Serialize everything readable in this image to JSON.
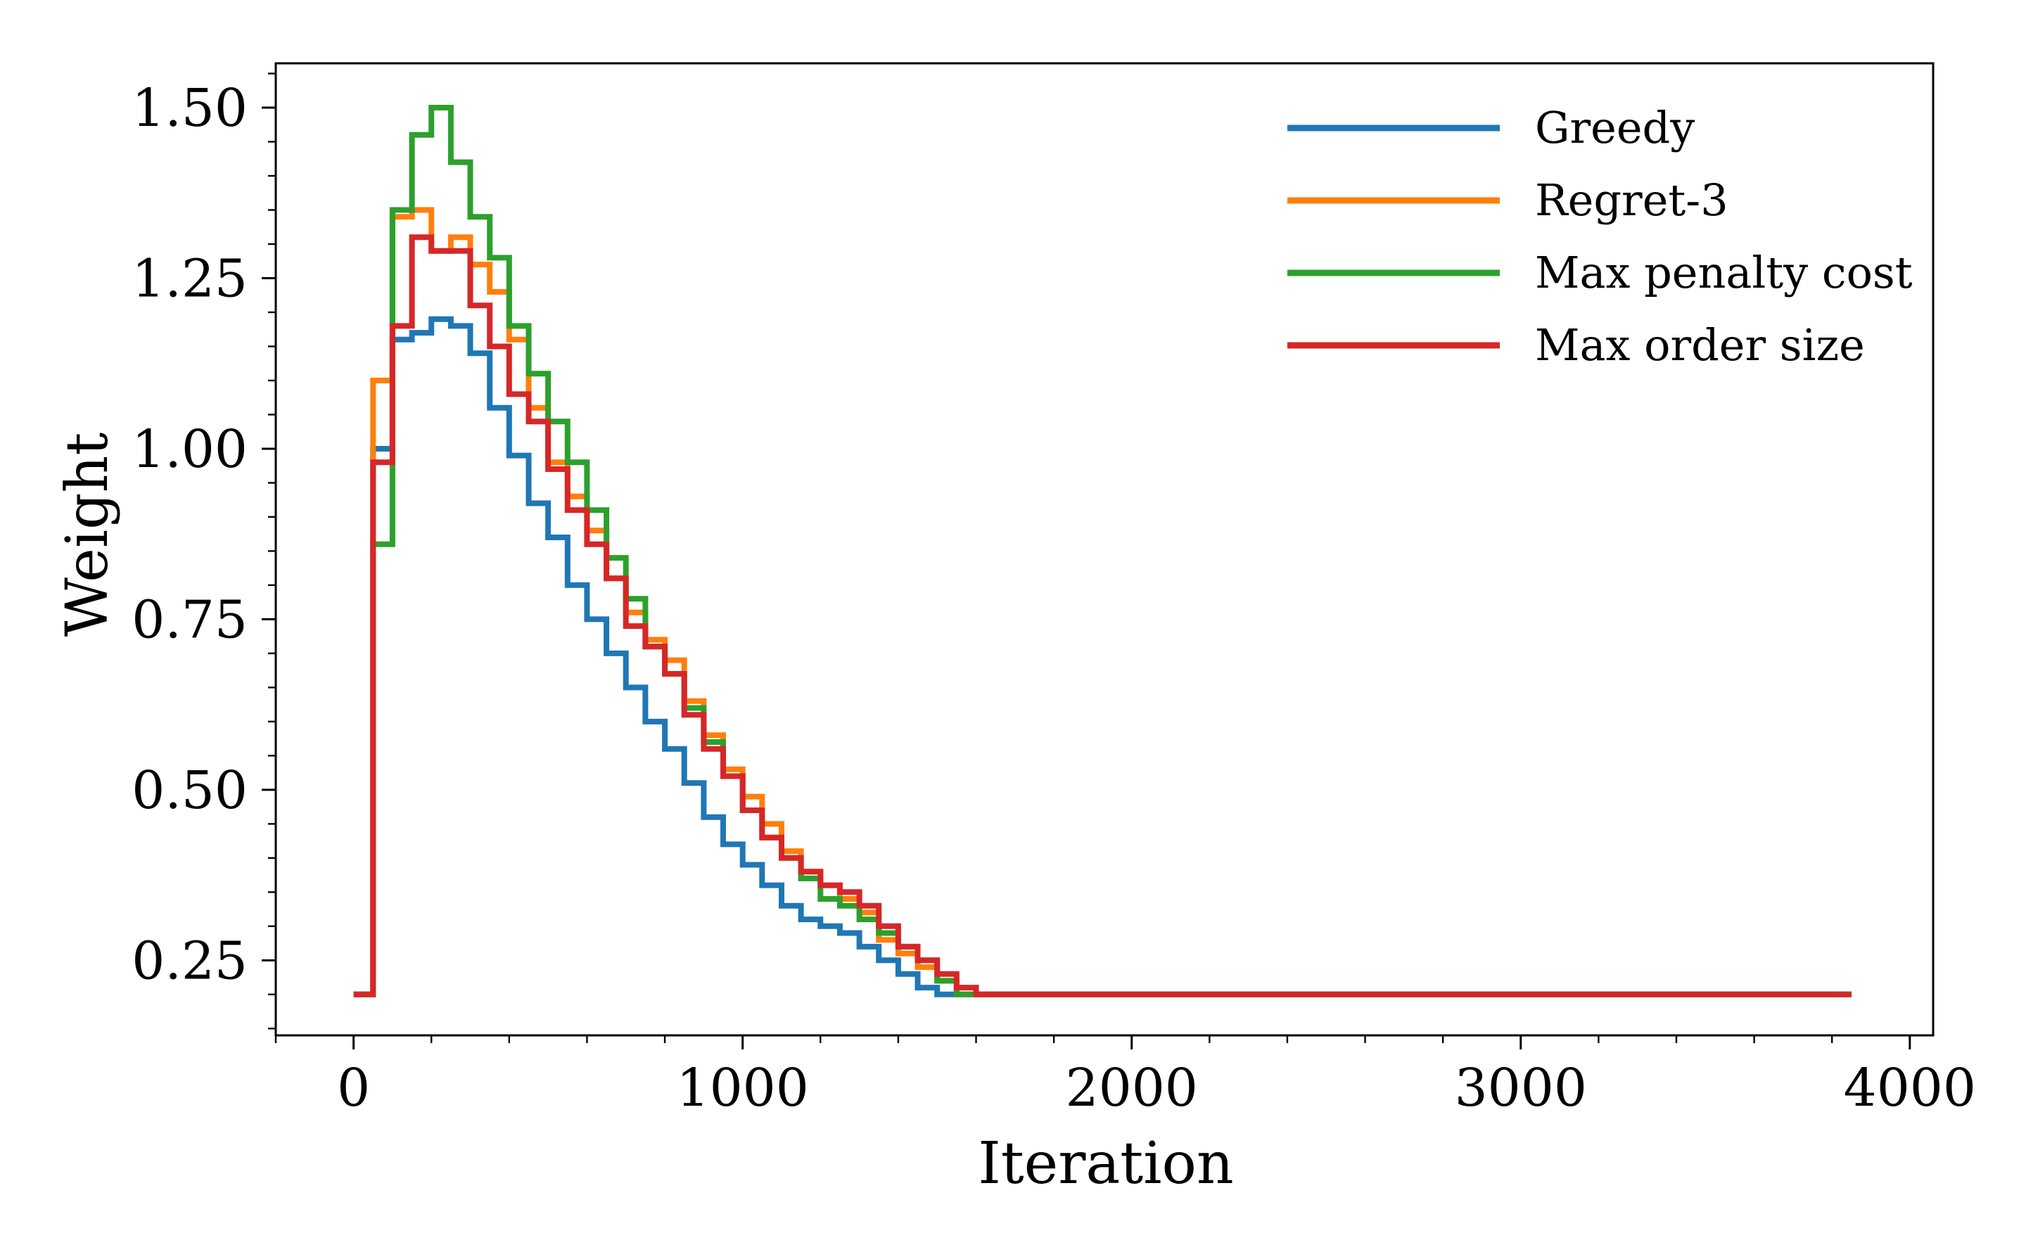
{
  "chart_data": {
    "type": "line",
    "step": true,
    "title": "",
    "xlabel": "Iteration",
    "ylabel": "Weight",
    "xlim": [
      -200,
      4060
    ],
    "ylim": [
      0.14,
      1.565
    ],
    "xticks": [
      0,
      1000,
      2000,
      3000,
      4000
    ],
    "xtick_labels": [
      "0",
      "1000",
      "2000",
      "3000",
      "4000"
    ],
    "yticks": [
      0.25,
      0.5,
      0.75,
      1.0,
      1.25,
      1.5
    ],
    "ytick_labels": [
      "0.25",
      "0.50",
      "0.75",
      "1.00",
      "1.25",
      "1.50"
    ],
    "grid": false,
    "legend_position": "top-right",
    "x": [
      0,
      50,
      100,
      150,
      200,
      250,
      300,
      350,
      400,
      450,
      500,
      550,
      600,
      650,
      700,
      750,
      800,
      850,
      900,
      950,
      1000,
      1050,
      1100,
      1150,
      1200,
      1250,
      1300,
      1350,
      1400,
      1450,
      1500,
      1550,
      1600,
      3850
    ],
    "series": [
      {
        "name": "Greedy",
        "color": "#1f77b4",
        "values": [
          0.2,
          1.0,
          1.16,
          1.17,
          1.19,
          1.18,
          1.14,
          1.06,
          0.99,
          0.92,
          0.87,
          0.8,
          0.75,
          0.7,
          0.65,
          0.6,
          0.56,
          0.51,
          0.46,
          0.42,
          0.39,
          0.36,
          0.33,
          0.31,
          0.3,
          0.29,
          0.27,
          0.25,
          0.23,
          0.21,
          0.2,
          0.2,
          0.2,
          0.2
        ]
      },
      {
        "name": "Regret-3",
        "color": "#ff7f0e",
        "values": [
          0.2,
          1.1,
          1.34,
          1.35,
          1.29,
          1.31,
          1.27,
          1.23,
          1.16,
          1.06,
          0.98,
          0.93,
          0.88,
          0.81,
          0.76,
          0.72,
          0.69,
          0.63,
          0.58,
          0.53,
          0.49,
          0.45,
          0.41,
          0.38,
          0.36,
          0.34,
          0.32,
          0.28,
          0.26,
          0.24,
          0.22,
          0.2,
          0.2,
          0.2
        ]
      },
      {
        "name": "Max penalty cost",
        "color": "#2ca02c",
        "values": [
          0.2,
          0.86,
          1.35,
          1.46,
          1.5,
          1.42,
          1.34,
          1.28,
          1.18,
          1.11,
          1.04,
          0.98,
          0.91,
          0.84,
          0.78,
          0.71,
          0.67,
          0.62,
          0.57,
          0.52,
          0.47,
          0.43,
          0.4,
          0.37,
          0.34,
          0.33,
          0.31,
          0.29,
          0.27,
          0.25,
          0.22,
          0.2,
          0.2,
          0.2
        ]
      },
      {
        "name": "Max order size",
        "color": "#d62728",
        "values": [
          0.2,
          0.98,
          1.18,
          1.31,
          1.29,
          1.29,
          1.21,
          1.15,
          1.08,
          1.04,
          0.97,
          0.91,
          0.86,
          0.81,
          0.74,
          0.71,
          0.67,
          0.61,
          0.56,
          0.52,
          0.47,
          0.43,
          0.4,
          0.38,
          0.36,
          0.35,
          0.33,
          0.3,
          0.27,
          0.25,
          0.23,
          0.21,
          0.2,
          0.2
        ]
      }
    ]
  }
}
